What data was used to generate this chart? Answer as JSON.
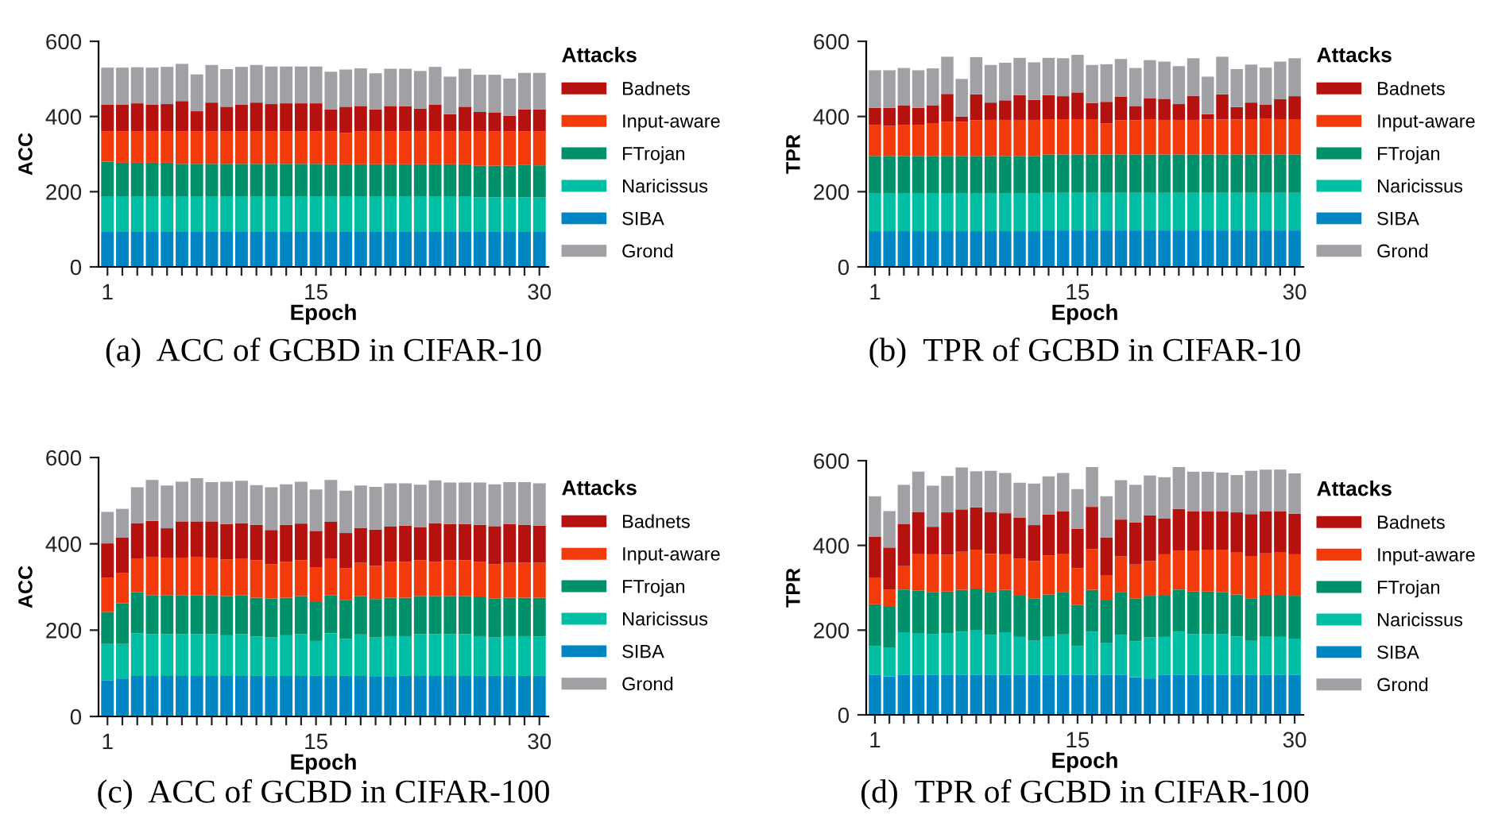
{
  "chart_data": [
    {
      "type": "bar",
      "stacked": true,
      "title": "(a)  ACC of GCBD in CIFAR-10",
      "xlabel": "Epoch",
      "ylabel": "ACC",
      "legend_title": "Attacks",
      "legend": "right",
      "ylim": [
        0,
        600
      ],
      "yticks": [
        0,
        200,
        400,
        600
      ],
      "categories": [
        "1",
        null,
        null,
        null,
        null,
        null,
        null,
        null,
        null,
        null,
        null,
        null,
        null,
        null,
        "15",
        null,
        null,
        null,
        null,
        null,
        null,
        null,
        null,
        null,
        null,
        null,
        null,
        null,
        null,
        "30"
      ],
      "series": [
        {
          "name": "SIBA",
          "color": "#0087c3",
          "values": [
            93,
            93,
            93,
            93,
            93,
            93,
            93,
            93,
            93,
            93,
            93,
            93,
            93,
            93,
            93,
            93,
            93,
            93,
            93,
            93,
            93,
            93,
            93,
            93,
            93,
            93,
            93,
            93,
            93,
            93
          ]
        },
        {
          "name": "Naricissus",
          "color": "#00bfa5",
          "values": [
            95,
            95,
            95,
            95,
            95,
            95,
            95,
            95,
            95,
            95,
            95,
            95,
            95,
            95,
            95,
            95,
            95,
            95,
            95,
            95,
            95,
            95,
            95,
            95,
            95,
            92,
            92,
            92,
            92,
            92
          ]
        },
        {
          "name": "FTrojan",
          "color": "#00906a",
          "values": [
            92,
            89,
            89,
            89,
            89,
            86,
            86,
            86,
            86,
            86,
            86,
            86,
            86,
            86,
            86,
            85,
            85,
            85,
            85,
            85,
            85,
            85,
            85,
            85,
            85,
            84,
            84,
            84,
            87,
            85
          ]
        },
        {
          "name": "Input-aware",
          "color": "#f33a0b",
          "values": [
            80,
            83,
            83,
            83,
            83,
            86,
            86,
            86,
            86,
            86,
            86,
            86,
            86,
            86,
            86,
            87,
            83,
            87,
            87,
            87,
            87,
            87,
            87,
            87,
            87,
            91,
            91,
            91,
            88,
            90
          ]
        },
        {
          "name": "Badnets",
          "color": "#b5120f",
          "values": [
            72,
            72,
            75,
            71,
            73,
            81,
            54,
            77,
            66,
            72,
            77,
            73,
            75,
            75,
            75,
            59,
            70,
            68,
            59,
            68,
            67,
            61,
            72,
            46,
            66,
            52,
            51,
            42,
            59,
            59
          ]
        },
        {
          "name": "Grond",
          "color": "#a0a0a5",
          "values": [
            98,
            98,
            96,
            99,
            99,
            99,
            98,
            100,
            100,
            100,
            100,
            100,
            98,
            98,
            98,
            100,
            99,
            100,
            96,
            99,
            100,
            100,
            100,
            100,
            101,
            99,
            100,
            99,
            97,
            97
          ]
        }
      ]
    },
    {
      "type": "bar",
      "stacked": true,
      "title": "(b)  TPR of GCBD in CIFAR-10",
      "xlabel": "Epoch",
      "ylabel": "TPR",
      "legend_title": "Attacks",
      "legend": "right",
      "ylim": [
        0,
        600
      ],
      "yticks": [
        0,
        200,
        400,
        600
      ],
      "categories": [
        "1",
        null,
        null,
        null,
        null,
        null,
        null,
        null,
        null,
        null,
        null,
        null,
        null,
        null,
        "15",
        null,
        null,
        null,
        null,
        null,
        null,
        null,
        null,
        null,
        null,
        null,
        null,
        null,
        null,
        "30"
      ],
      "series": [
        {
          "name": "SIBA",
          "color": "#0087c3",
          "values": [
            95,
            95,
            95,
            95,
            95,
            95,
            95,
            95,
            95,
            95,
            95,
            95,
            97,
            97,
            97,
            97,
            97,
            97,
            97,
            97,
            97,
            97,
            97,
            97,
            97,
            97,
            97,
            97,
            97,
            97
          ]
        },
        {
          "name": "Naricissus",
          "color": "#00bfa5",
          "values": [
            100,
            100,
            100,
            100,
            100,
            100,
            100,
            100,
            100,
            100,
            100,
            100,
            100,
            100,
            100,
            100,
            100,
            100,
            100,
            100,
            100,
            100,
            100,
            100,
            100,
            100,
            100,
            100,
            100,
            100
          ]
        },
        {
          "name": "FTrojan",
          "color": "#00906a",
          "values": [
            100,
            100,
            100,
            100,
            100,
            100,
            100,
            100,
            100,
            100,
            100,
            100,
            102,
            102,
            102,
            102,
            102,
            102,
            102,
            102,
            102,
            102,
            102,
            102,
            102,
            102,
            102,
            102,
            102,
            102
          ]
        },
        {
          "name": "Input-aware",
          "color": "#f33a0b",
          "values": [
            83,
            80,
            83,
            83,
            86,
            91,
            91,
            95,
            96,
            96,
            96,
            96,
            94,
            94,
            94,
            94,
            83,
            91,
            91,
            94,
            92,
            92,
            92,
            93,
            93,
            93,
            94,
            96,
            94,
            94
          ]
        },
        {
          "name": "Badnets",
          "color": "#b5120f",
          "values": [
            45,
            48,
            52,
            45,
            49,
            74,
            14,
            69,
            46,
            52,
            66,
            53,
            64,
            61,
            71,
            43,
            57,
            63,
            38,
            56,
            56,
            42,
            64,
            14,
            67,
            33,
            44,
            36,
            53,
            61
          ]
        },
        {
          "name": "Grond",
          "color": "#a0a0a5",
          "values": [
            100,
            100,
            99,
            100,
            98,
            99,
            100,
            99,
            100,
            100,
            99,
            100,
            99,
            101,
            100,
            101,
            100,
            100,
            101,
            101,
            99,
            101,
            100,
            100,
            100,
            101,
            101,
            99,
            100,
            101
          ]
        }
      ]
    },
    {
      "type": "bar",
      "stacked": true,
      "title": "(c)  ACC of GCBD in CIFAR-100",
      "xlabel": "Epoch",
      "ylabel": "ACC",
      "legend_title": "Attacks",
      "legend": "right",
      "ylim": [
        0,
        600
      ],
      "yticks": [
        0,
        200,
        400,
        600
      ],
      "categories": [
        "1",
        null,
        null,
        null,
        null,
        null,
        null,
        null,
        null,
        null,
        null,
        null,
        null,
        null,
        "15",
        null,
        null,
        null,
        null,
        null,
        null,
        null,
        null,
        null,
        null,
        null,
        null,
        null,
        null,
        "30"
      ],
      "series": [
        {
          "name": "SIBA",
          "color": "#0087c3",
          "values": [
            84,
            88,
            94,
            94,
            94,
            94,
            94,
            94,
            94,
            94,
            94,
            94,
            94,
            94,
            94,
            94,
            94,
            94,
            92,
            92,
            94,
            94,
            94,
            94,
            94,
            94,
            94,
            94,
            94,
            94
          ]
        },
        {
          "name": "Naricissus",
          "color": "#00bfa5",
          "values": [
            84,
            80,
            99,
            97,
            97,
            97,
            97,
            97,
            94,
            97,
            91,
            89,
            94,
            97,
            81,
            99,
            86,
            96,
            91,
            94,
            92,
            97,
            97,
            97,
            97,
            92,
            89,
            92,
            92,
            91
          ]
        },
        {
          "name": "FTrojan",
          "color": "#00906a",
          "values": [
            74,
            94,
            95,
            90,
            90,
            90,
            90,
            90,
            91,
            90,
            90,
            90,
            87,
            88,
            90,
            88,
            89,
            89,
            89,
            89,
            89,
            88,
            88,
            88,
            88,
            92,
            90,
            89,
            89,
            90
          ]
        },
        {
          "name": "Input-aware",
          "color": "#f33a0b",
          "values": [
            79,
            71,
            77,
            89,
            87,
            87,
            89,
            87,
            85,
            84,
            87,
            80,
            83,
            83,
            81,
            84,
            74,
            77,
            77,
            83,
            83,
            83,
            79,
            83,
            83,
            80,
            80,
            81,
            81,
            81
          ]
        },
        {
          "name": "Badnets",
          "color": "#b5120f",
          "values": [
            80,
            82,
            83,
            83,
            68,
            84,
            82,
            84,
            82,
            83,
            82,
            79,
            86,
            85,
            84,
            86,
            82,
            81,
            84,
            82,
            84,
            76,
            90,
            84,
            84,
            86,
            88,
            90,
            88,
            86
          ]
        },
        {
          "name": "Grond",
          "color": "#a0a0a5",
          "values": [
            73,
            66,
            83,
            95,
            99,
            92,
            100,
            91,
            98,
            98,
            92,
            99,
            94,
            97,
            96,
            97,
            98,
            98,
            99,
            100,
            98,
            99,
            99,
            96,
            96,
            98,
            97,
            97,
            99,
            98
          ]
        }
      ]
    },
    {
      "type": "bar",
      "stacked": true,
      "title": "(d)  TPR of GCBD in CIFAR-100",
      "xlabel": "Epoch",
      "ylabel": "TPR",
      "legend_title": "Attacks",
      "legend": "right",
      "ylim": [
        0,
        600
      ],
      "yticks": [
        0,
        200,
        400,
        600
      ],
      "categories": [
        "1",
        null,
        null,
        null,
        null,
        null,
        null,
        null,
        null,
        null,
        null,
        null,
        null,
        null,
        "15",
        null,
        null,
        null,
        null,
        null,
        null,
        null,
        null,
        null,
        null,
        null,
        null,
        null,
        null,
        "30"
      ],
      "series": [
        {
          "name": "SIBA",
          "color": "#0087c3",
          "values": [
            94,
            91,
            95,
            95,
            95,
            95,
            95,
            95,
            95,
            95,
            95,
            95,
            95,
            95,
            95,
            95,
            95,
            95,
            89,
            86,
            95,
            95,
            95,
            95,
            95,
            95,
            95,
            95,
            95,
            95
          ]
        },
        {
          "name": "Naricissus",
          "color": "#00bfa5",
          "values": [
            69,
            67,
            100,
            98,
            96,
            98,
            101,
            104,
            94,
            100,
            89,
            80,
            89,
            95,
            68,
            101,
            74,
            94,
            85,
            97,
            89,
            101,
            96,
            96,
            96,
            90,
            80,
            89,
            89,
            85
          ]
        },
        {
          "name": "FTrojan",
          "color": "#00906a",
          "values": [
            98,
            97,
            101,
            100,
            99,
            98,
            99,
            99,
            100,
            100,
            99,
            100,
            100,
            100,
            97,
            99,
            101,
            101,
            101,
            98,
            99,
            100,
            100,
            100,
            99,
            99,
            100,
            99,
            99,
            101
          ]
        },
        {
          "name": "Input-aware",
          "color": "#f33a0b",
          "values": [
            62,
            41,
            55,
            86,
            89,
            87,
            90,
            92,
            91,
            84,
            86,
            88,
            92,
            89,
            86,
            96,
            60,
            84,
            80,
            82,
            96,
            92,
            97,
            99,
            100,
            99,
            100,
            98,
            100,
            98
          ]
        },
        {
          "name": "Badnets",
          "color": "#b5120f",
          "values": [
            98,
            99,
            100,
            100,
            65,
            100,
            100,
            100,
            99,
            97,
            97,
            85,
            97,
            101,
            93,
            100,
            89,
            87,
            99,
            108,
            85,
            98,
            92,
            91,
            91,
            95,
            99,
            99,
            98,
            96
          ]
        },
        {
          "name": "Grond",
          "color": "#a0a0a5",
          "values": [
            95,
            86,
            92,
            95,
            97,
            86,
            99,
            85,
            97,
            95,
            82,
            98,
            90,
            91,
            94,
            94,
            97,
            93,
            89,
            94,
            97,
            99,
            94,
            93,
            91,
            88,
            102,
            99,
            98,
            95
          ]
        }
      ]
    }
  ]
}
